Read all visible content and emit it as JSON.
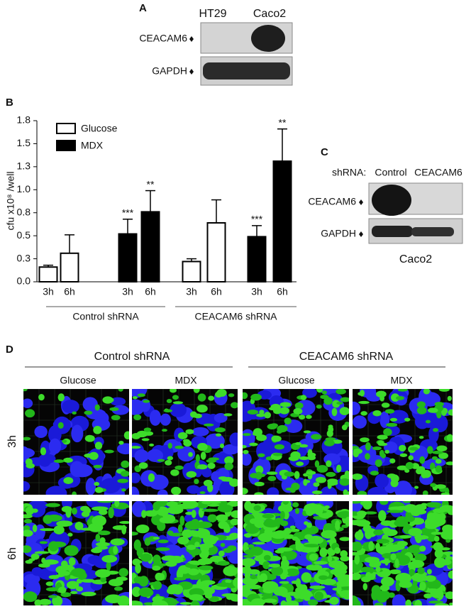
{
  "panel_a": {
    "label": "A",
    "columns": [
      "HT29",
      "Caco2"
    ],
    "rows": [
      "CEACAM6",
      "GAPDH"
    ]
  },
  "chart_data": {
    "type": "bar",
    "panel_label": "B",
    "y_label": "cfu x10⁸ /well",
    "groups": [
      "Control shRNA",
      "CEACAM6 shRNA"
    ],
    "categories": [
      "3h",
      "6h",
      "3h",
      "6h"
    ],
    "series": [
      {
        "name": "Glucose",
        "color": "#ffffff",
        "values": [
          0.16,
          0.31,
          0.22,
          0.64
        ],
        "errors": [
          0.02,
          0.2,
          0.03,
          0.25
        ]
      },
      {
        "name": "MDX",
        "color": "#000000",
        "values": [
          0.52,
          0.76,
          0.49,
          1.31
        ],
        "errors": [
          0.16,
          0.23,
          0.12,
          0.35
        ],
        "annotations": [
          "***",
          "**",
          "***",
          "**"
        ]
      }
    ],
    "ylim": [
      0,
      1.75
    ],
    "yticks": [
      {
        "value": 0,
        "label": "0.0"
      },
      {
        "value": 0.25,
        "label": "0.3"
      },
      0.5,
      {
        "value": 0.75,
        "label": "0.8"
      },
      {
        "value": 1,
        "label": "1.0"
      },
      {
        "value": 1.25,
        "label": "1.3"
      },
      1.5,
      {
        "value": 1.75,
        "label": "1.8"
      }
    ],
    "legend": "upper left"
  },
  "panel_c": {
    "label": "C",
    "prefix": "shRNA:",
    "columns": [
      "Control",
      "CEACAM6"
    ],
    "rows": [
      "CEACAM6",
      "GAPDH"
    ],
    "cell_line": "Caco2"
  },
  "panel_d": {
    "label": "D",
    "groups": [
      "Control shRNA",
      "CEACAM6 shRNA"
    ],
    "columns": [
      "Glucose",
      "MDX",
      "Glucose",
      "MDX"
    ],
    "rows": [
      "3h",
      "6h"
    ]
  }
}
